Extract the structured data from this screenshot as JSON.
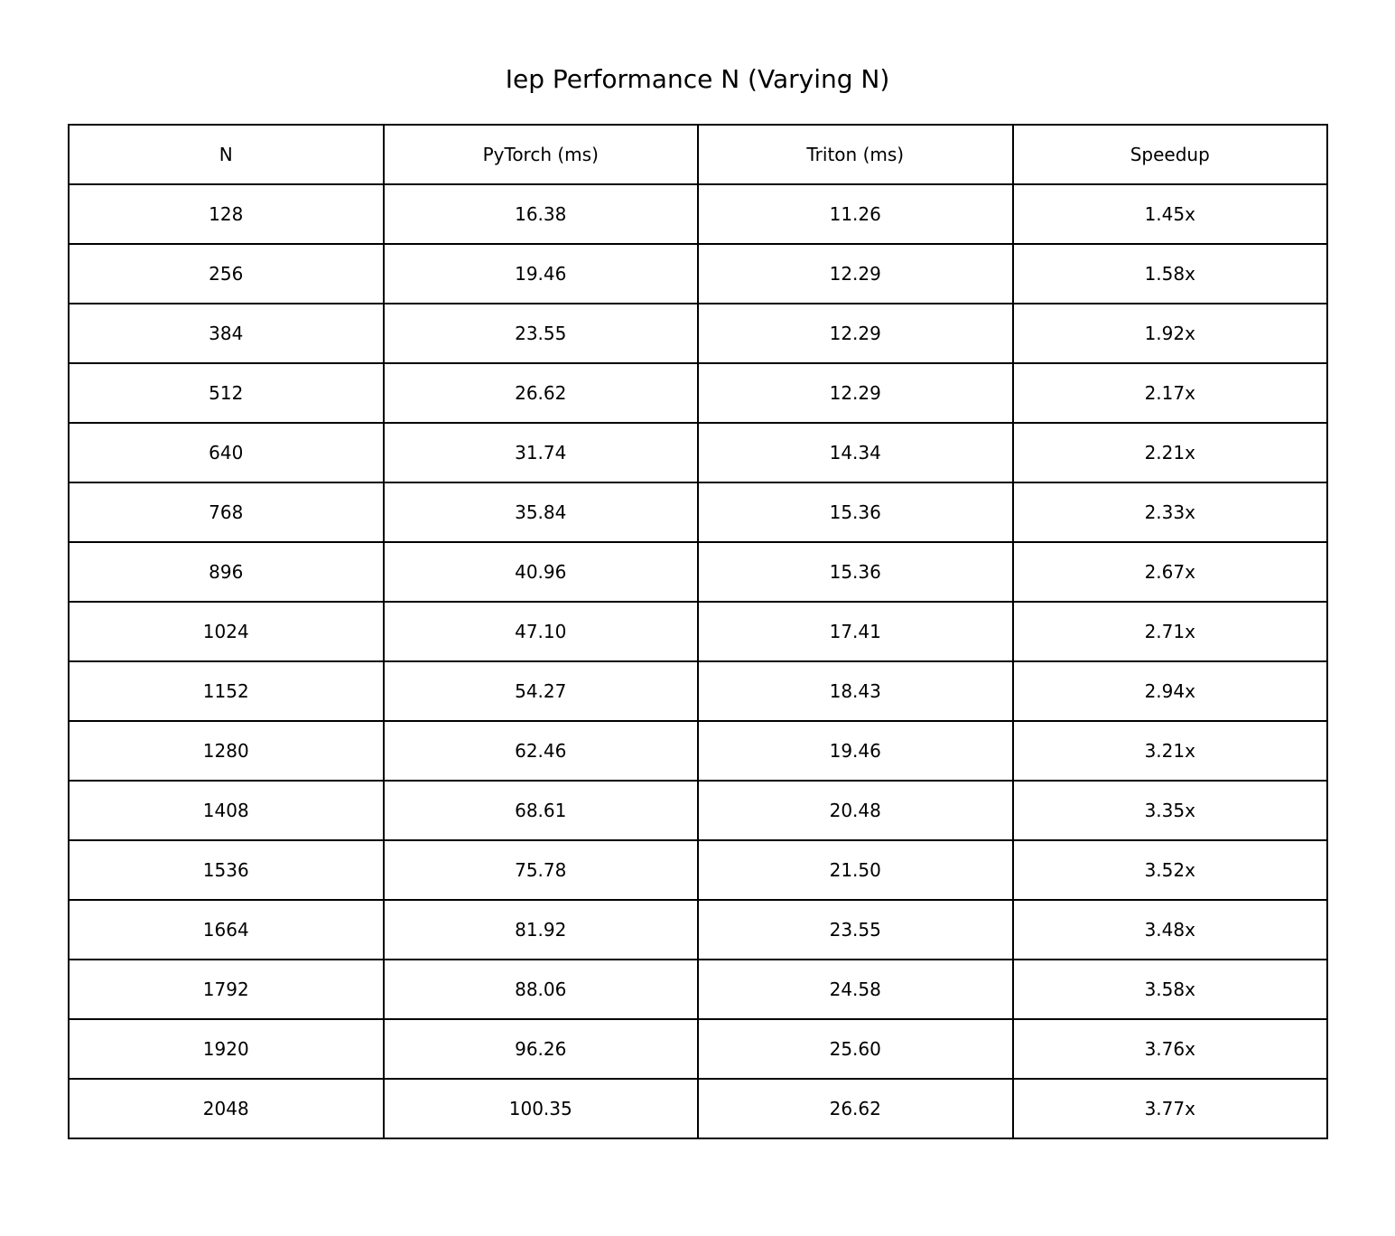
{
  "chart_data": {
    "type": "table",
    "title": "Iep Performance N (Varying N)",
    "columns": [
      "N",
      "PyTorch (ms)",
      "Triton (ms)",
      "Speedup"
    ],
    "rows": [
      [
        "128",
        "16.38",
        "11.26",
        "1.45x"
      ],
      [
        "256",
        "19.46",
        "12.29",
        "1.58x"
      ],
      [
        "384",
        "23.55",
        "12.29",
        "1.92x"
      ],
      [
        "512",
        "26.62",
        "12.29",
        "2.17x"
      ],
      [
        "640",
        "31.74",
        "14.34",
        "2.21x"
      ],
      [
        "768",
        "35.84",
        "15.36",
        "2.33x"
      ],
      [
        "896",
        "40.96",
        "15.36",
        "2.67x"
      ],
      [
        "1024",
        "47.10",
        "17.41",
        "2.71x"
      ],
      [
        "1152",
        "54.27",
        "18.43",
        "2.94x"
      ],
      [
        "1280",
        "62.46",
        "19.46",
        "3.21x"
      ],
      [
        "1408",
        "68.61",
        "20.48",
        "3.35x"
      ],
      [
        "1536",
        "75.78",
        "21.50",
        "3.52x"
      ],
      [
        "1664",
        "81.92",
        "23.55",
        "3.48x"
      ],
      [
        "1792",
        "88.06",
        "24.58",
        "3.58x"
      ],
      [
        "1920",
        "96.26",
        "25.60",
        "3.76x"
      ],
      [
        "2048",
        "100.35",
        "26.62",
        "3.77x"
      ]
    ]
  }
}
